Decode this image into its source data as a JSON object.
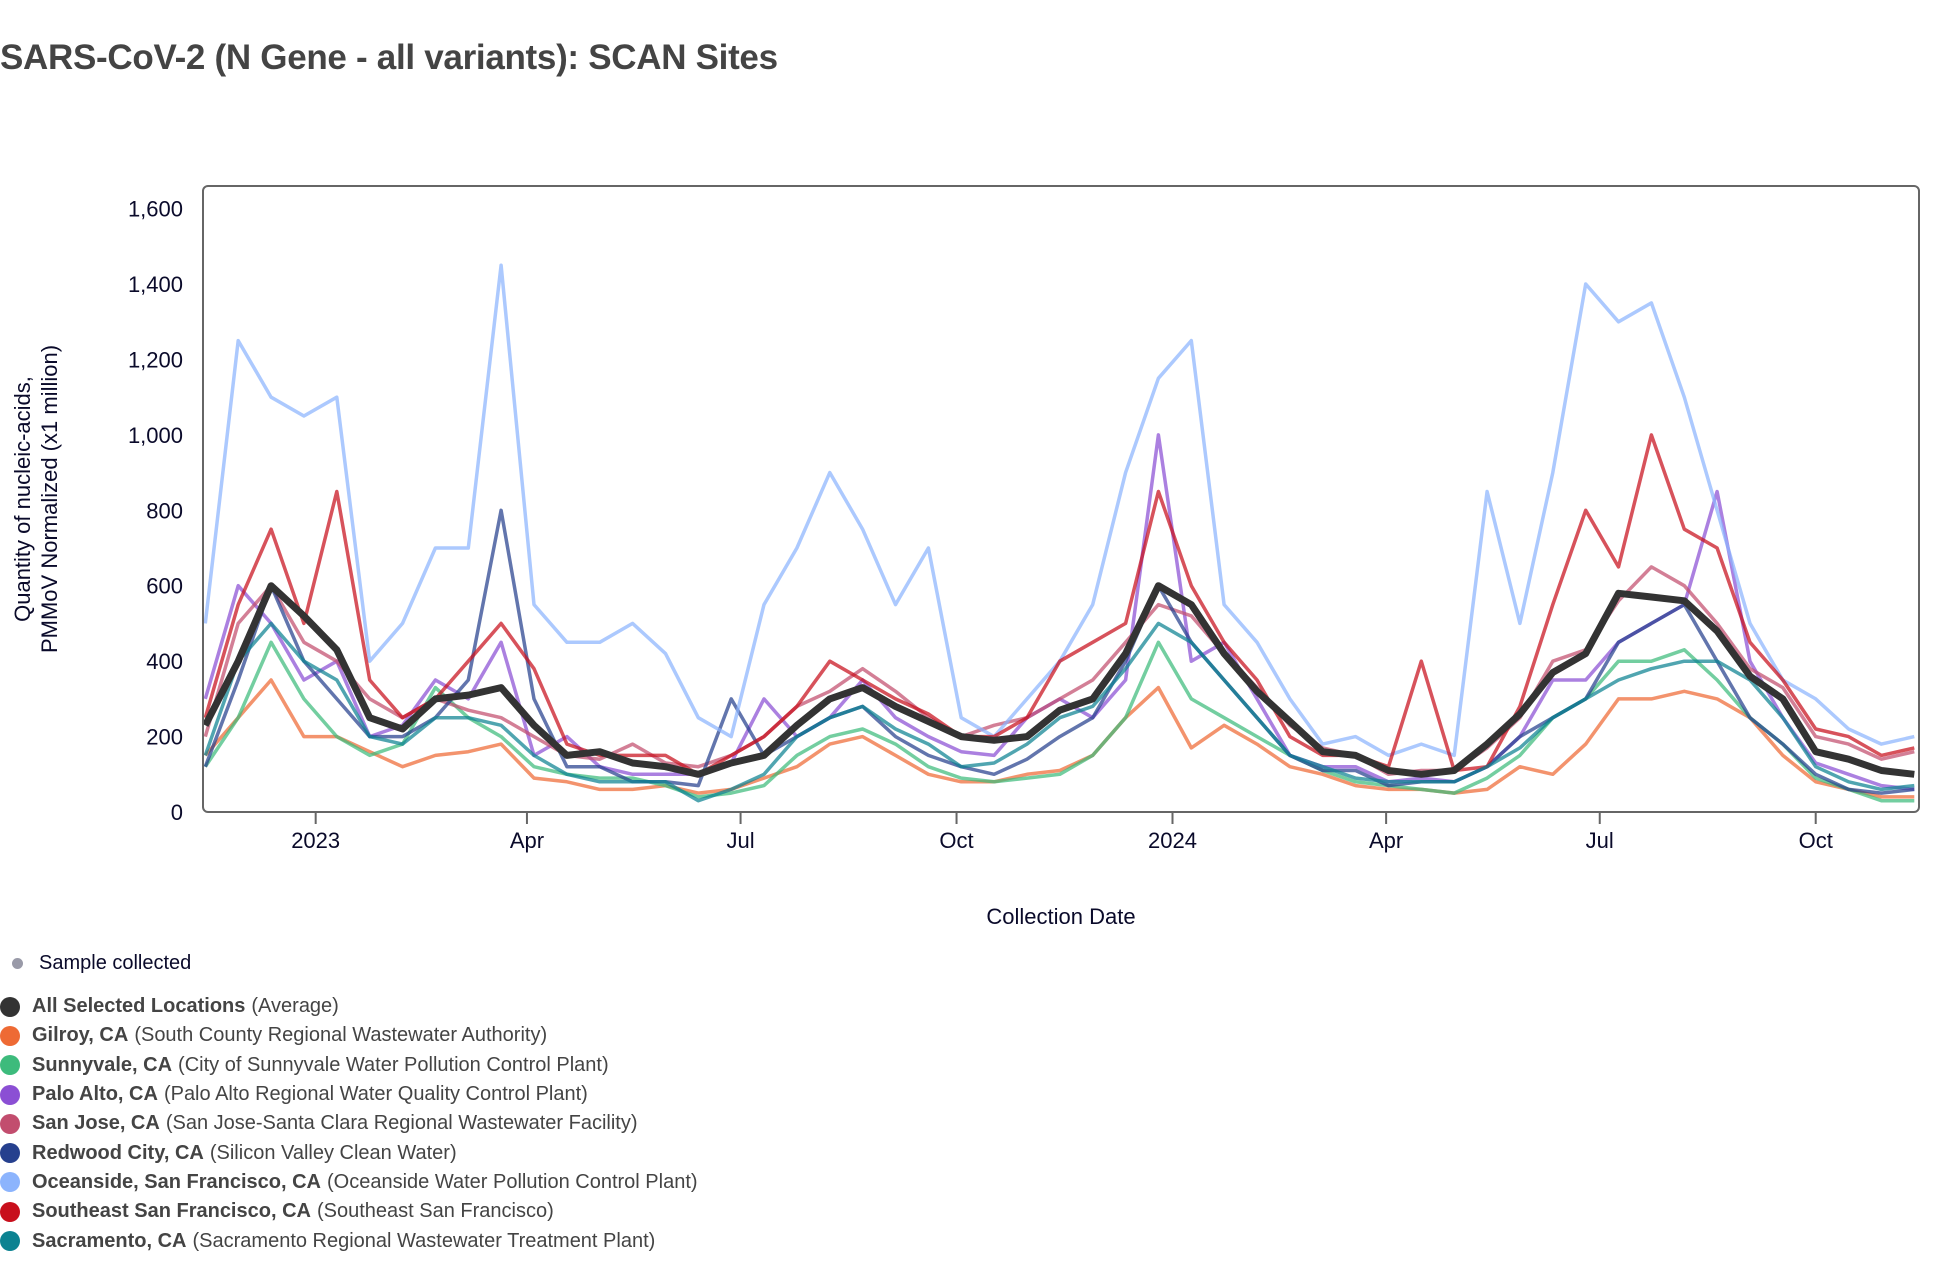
{
  "title": "SARS-CoV-2 (N Gene - all variants): SCAN Sites",
  "chart_data": {
    "type": "line",
    "title": "SARS-CoV-2 (N Gene - all variants): SCAN Sites",
    "xlabel": "Collection Date",
    "ylabel": [
      "Quantity of nucleic-acids,",
      "PMMoV Normalized (x1 million)"
    ],
    "xlim": [
      "2022-11-14",
      "2024-11-14"
    ],
    "ylim": [
      0,
      1660
    ],
    "y_ticks": [
      0,
      200,
      400,
      600,
      800,
      1000,
      1200,
      1400,
      1600
    ],
    "y_tick_labels": [
      "0",
      "200",
      "400",
      "600",
      "800",
      "1,000",
      "1,200",
      "1,400",
      "1,600"
    ],
    "x_ticks": [
      {
        "date": "2023-01-01",
        "label": "2023"
      },
      {
        "date": "2023-04-01",
        "label": "Apr"
      },
      {
        "date": "2023-07-01",
        "label": "Jul"
      },
      {
        "date": "2023-10-01",
        "label": "Oct"
      },
      {
        "date": "2024-01-01",
        "label": "2024"
      },
      {
        "date": "2024-04-01",
        "label": "Apr"
      },
      {
        "date": "2024-07-01",
        "label": "Jul"
      },
      {
        "date": "2024-10-01",
        "label": "Oct"
      }
    ],
    "grid": false,
    "legend_position": "bottom-left",
    "x": [
      "2022-11-15",
      "2022-11-29",
      "2022-12-13",
      "2022-12-27",
      "2023-01-10",
      "2023-01-24",
      "2023-02-07",
      "2023-02-21",
      "2023-03-07",
      "2023-03-21",
      "2023-04-04",
      "2023-04-18",
      "2023-05-02",
      "2023-05-16",
      "2023-05-30",
      "2023-06-13",
      "2023-06-27",
      "2023-07-11",
      "2023-07-25",
      "2023-08-08",
      "2023-08-22",
      "2023-09-05",
      "2023-09-19",
      "2023-10-03",
      "2023-10-17",
      "2023-10-31",
      "2023-11-14",
      "2023-11-28",
      "2023-12-12",
      "2023-12-26",
      "2024-01-09",
      "2024-01-23",
      "2024-02-06",
      "2024-02-20",
      "2024-03-05",
      "2024-03-19",
      "2024-04-02",
      "2024-04-16",
      "2024-04-30",
      "2024-05-14",
      "2024-05-28",
      "2024-06-11",
      "2024-06-25",
      "2024-07-09",
      "2024-07-23",
      "2024-08-06",
      "2024-08-20",
      "2024-09-03",
      "2024-09-17",
      "2024-10-01",
      "2024-10-15",
      "2024-10-29",
      "2024-11-12"
    ],
    "series": [
      {
        "name": "Gilroy, CA",
        "detail": "(South County Regional Wastewater Authority)",
        "color": "#ee6a34",
        "values": [
          150,
          250,
          350,
          200,
          200,
          160,
          120,
          150,
          160,
          180,
          90,
          80,
          60,
          60,
          70,
          50,
          60,
          90,
          120,
          180,
          200,
          150,
          100,
          80,
          80,
          100,
          110,
          150,
          250,
          330,
          170,
          230,
          180,
          120,
          100,
          70,
          60,
          60,
          50,
          60,
          120,
          100,
          180,
          300,
          300,
          320,
          300,
          250,
          150,
          80,
          60,
          40,
          40
        ]
      },
      {
        "name": "Sunnyvale, CA",
        "detail": "(City of Sunnyvale Water Pollution Control Plant)",
        "color": "#3dbb7c",
        "values": [
          120,
          250,
          450,
          300,
          200,
          150,
          180,
          330,
          250,
          200,
          120,
          100,
          90,
          90,
          70,
          40,
          50,
          70,
          150,
          200,
          220,
          180,
          120,
          90,
          80,
          90,
          100,
          150,
          250,
          450,
          300,
          250,
          200,
          150,
          110,
          80,
          70,
          60,
          50,
          90,
          150,
          250,
          300,
          400,
          400,
          430,
          350,
          250,
          180,
          90,
          60,
          30,
          30
        ]
      },
      {
        "name": "Palo Alto, CA",
        "detail": "(Palo Alto Regional Water Quality Control Plant)",
        "color": "#8b4fd4",
        "values": [
          300,
          600,
          500,
          350,
          400,
          200,
          230,
          350,
          300,
          450,
          150,
          200,
          120,
          100,
          100,
          100,
          130,
          300,
          200,
          250,
          350,
          250,
          200,
          160,
          150,
          250,
          300,
          250,
          350,
          1000,
          400,
          450,
          300,
          150,
          120,
          120,
          80,
          90,
          80,
          120,
          200,
          350,
          350,
          450,
          500,
          550,
          850,
          400,
          250,
          130,
          100,
          70,
          60
        ]
      },
      {
        "name": "San Jose, CA",
        "detail": "(San Jose-Santa Clara Regional Wastewater Facility)",
        "color": "#c24d6e",
        "values": [
          200,
          500,
          600,
          450,
          400,
          300,
          250,
          300,
          270,
          250,
          200,
          150,
          140,
          180,
          130,
          120,
          150,
          200,
          280,
          320,
          380,
          320,
          250,
          200,
          230,
          250,
          300,
          350,
          450,
          550,
          520,
          420,
          330,
          230,
          170,
          150,
          100,
          110,
          110,
          170,
          250,
          400,
          430,
          560,
          650,
          600,
          500,
          380,
          330,
          200,
          180,
          140,
          160
        ]
      },
      {
        "name": "Redwood City, CA",
        "detail": "(Silicon Valley Clean Water)",
        "color": "#26408e",
        "values": [
          120,
          350,
          600,
          400,
          300,
          200,
          200,
          250,
          350,
          800,
          300,
          120,
          120,
          80,
          80,
          70,
          300,
          150,
          200,
          250,
          280,
          200,
          150,
          120,
          100,
          140,
          200,
          250,
          400,
          600,
          450,
          350,
          250,
          150,
          110,
          110,
          70,
          80,
          80,
          120,
          200,
          250,
          300,
          450,
          500,
          550,
          400,
          250,
          180,
          100,
          60,
          50,
          60
        ]
      },
      {
        "name": "Oceanside, San Francisco, CA",
        "detail": "(Oceanside Water Pollution Control Plant)",
        "color": "#8cb4fd",
        "values": [
          500,
          1250,
          1100,
          1050,
          1100,
          400,
          500,
          700,
          700,
          1450,
          550,
          450,
          450,
          500,
          420,
          250,
          200,
          550,
          700,
          900,
          750,
          550,
          700,
          250,
          200,
          300,
          400,
          550,
          900,
          1150,
          1250,
          550,
          450,
          300,
          180,
          200,
          150,
          180,
          150,
          850,
          500,
          900,
          1400,
          1300,
          1350,
          1100,
          800,
          500,
          350,
          300,
          220,
          180,
          200
        ]
      },
      {
        "name": "Southeast San Francisco, CA",
        "detail": "(Southeast San Francisco)",
        "color": "#c80f1c",
        "values": [
          250,
          550,
          750,
          500,
          850,
          350,
          250,
          300,
          400,
          500,
          380,
          180,
          150,
          150,
          150,
          100,
          150,
          200,
          280,
          400,
          350,
          300,
          260,
          200,
          200,
          250,
          400,
          450,
          500,
          850,
          600,
          450,
          350,
          200,
          150,
          150,
          120,
          400,
          110,
          120,
          280,
          550,
          800,
          650,
          1000,
          750,
          700,
          450,
          350,
          220,
          200,
          150,
          170
        ]
      },
      {
        "name": "Sacramento, CA",
        "detail": "(Sacramento Regional Wastewater Treatment Plant)",
        "color": "#0c8291",
        "values": [
          150,
          400,
          500,
          400,
          350,
          200,
          180,
          250,
          250,
          230,
          150,
          100,
          80,
          80,
          80,
          30,
          60,
          100,
          200,
          250,
          280,
          220,
          180,
          120,
          130,
          180,
          250,
          280,
          380,
          500,
          450,
          350,
          250,
          150,
          120,
          90,
          80,
          80,
          80,
          120,
          170,
          250,
          300,
          350,
          380,
          400,
          400,
          350,
          250,
          120,
          80,
          60,
          70
        ]
      },
      {
        "name": "All Selected Locations",
        "detail": "(Average)",
        "color": "#333333",
        "values": [
          230,
          400,
          600,
          520,
          430,
          250,
          220,
          300,
          310,
          330,
          230,
          150,
          160,
          130,
          120,
          100,
          130,
          150,
          230,
          300,
          330,
          280,
          240,
          200,
          190,
          200,
          270,
          300,
          420,
          600,
          550,
          420,
          320,
          240,
          160,
          150,
          110,
          100,
          110,
          180,
          260,
          370,
          420,
          580,
          570,
          560,
          480,
          360,
          300,
          160,
          140,
          110,
          100
        ]
      }
    ]
  },
  "legend": {
    "sample_label": "Sample collected",
    "sample_color": "#999aa8",
    "items": [
      {
        "name": "All Selected Locations",
        "detail": "(Average)",
        "color": "#333333"
      },
      {
        "name": "Gilroy, CA",
        "detail": "(South County Regional Wastewater Authority)",
        "color": "#ee6a34"
      },
      {
        "name": "Sunnyvale, CA",
        "detail": "(City of Sunnyvale Water Pollution Control Plant)",
        "color": "#3dbb7c"
      },
      {
        "name": "Palo Alto, CA",
        "detail": "(Palo Alto Regional Water Quality Control Plant)",
        "color": "#8b4fd4"
      },
      {
        "name": "San Jose, CA",
        "detail": "(San Jose-Santa Clara Regional Wastewater Facility)",
        "color": "#c24d6e"
      },
      {
        "name": "Redwood City, CA",
        "detail": "(Silicon Valley Clean Water)",
        "color": "#26408e"
      },
      {
        "name": "Oceanside, San Francisco, CA",
        "detail": "(Oceanside Water Pollution Control Plant)",
        "color": "#8cb4fd"
      },
      {
        "name": "Southeast San Francisco, CA",
        "detail": "(Southeast San Francisco)",
        "color": "#c80f1c"
      },
      {
        "name": "Sacramento, CA",
        "detail": "(Sacramento Regional Wastewater Treatment Plant)",
        "color": "#0c8291"
      }
    ]
  }
}
